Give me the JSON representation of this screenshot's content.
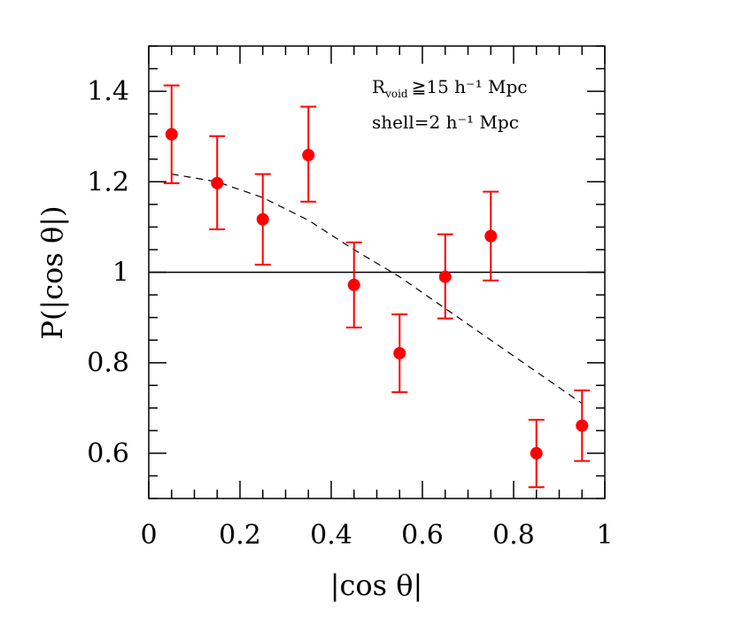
{
  "chart_data": {
    "type": "scatter",
    "title": "",
    "xlabel": "|cos θ|",
    "ylabel": "P(|cos θ|)",
    "xlim": [
      0,
      1
    ],
    "ylim": [
      0.5,
      1.5
    ],
    "x_tick_labels": [
      "0",
      "0.2",
      "0.4",
      "0.6",
      "0.8",
      "1"
    ],
    "y_tick_labels": [
      "0.6",
      "0.8",
      "1",
      "1.2",
      "1.4"
    ],
    "annotations": {
      "line1_main": "R",
      "line1_sub": "void",
      "line1_rest": "≧15 h⁻¹ Mpc",
      "line2": "shell=2 h⁻¹ Mpc"
    },
    "series": [
      {
        "name": "data",
        "color": "#ff0000",
        "x": [
          0.05,
          0.15,
          0.25,
          0.35,
          0.45,
          0.55,
          0.65,
          0.75,
          0.85,
          0.95
        ],
        "y": [
          1.305,
          1.197,
          1.117,
          1.259,
          0.972,
          0.821,
          0.99,
          1.08,
          0.6,
          0.661
        ],
        "err_lower": [
          0.108,
          0.102,
          0.1,
          0.103,
          0.094,
          0.086,
          0.092,
          0.098,
          0.075,
          0.078
        ],
        "err_upper": [
          0.108,
          0.104,
          0.1,
          0.107,
          0.094,
          0.086,
          0.094,
          0.098,
          0.074,
          0.078
        ]
      },
      {
        "name": "reference",
        "style": "solid",
        "color": "#000000",
        "x": [
          0,
          1
        ],
        "y": [
          1.0,
          1.0
        ]
      },
      {
        "name": "fit",
        "style": "dashed",
        "color": "#000000",
        "x": [
          0.05,
          0.15,
          0.25,
          0.35,
          0.45,
          0.55,
          0.65,
          0.75,
          0.85,
          0.95
        ],
        "y": [
          1.217,
          1.2,
          1.165,
          1.115,
          1.05,
          0.99,
          0.92,
          0.85,
          0.78,
          0.71
        ]
      }
    ]
  }
}
